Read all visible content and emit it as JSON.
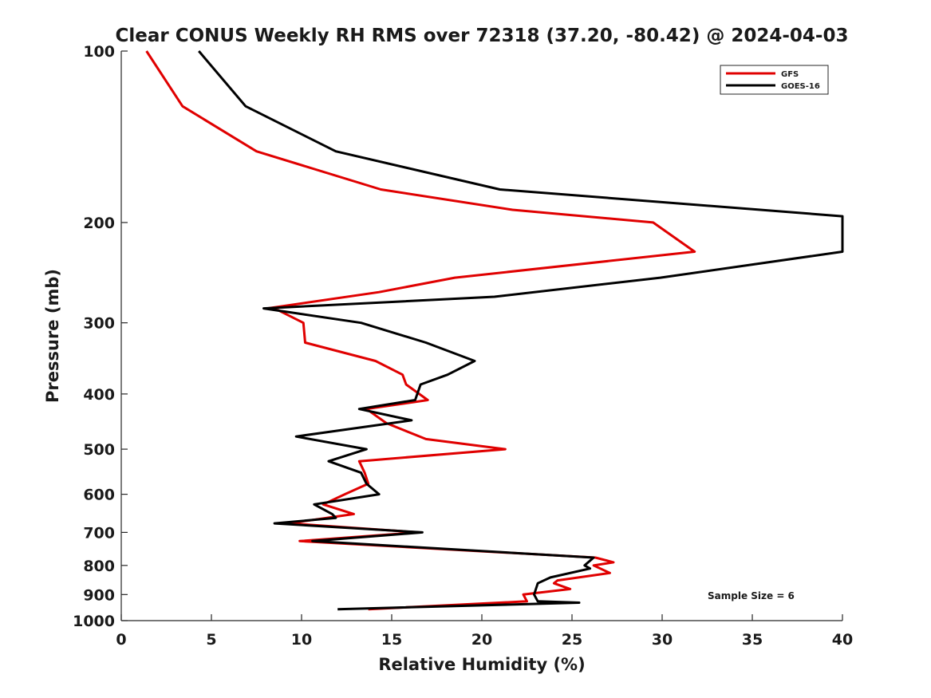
{
  "chart_data": {
    "type": "line",
    "title": "Clear CONUS Weekly RH RMS over 72318 (37.20, -80.42) @ 2024-04-03",
    "xlabel": "Relative Humidity (%)",
    "ylabel": "Pressure (mb)",
    "xlim": [
      0,
      40
    ],
    "ylim": [
      1000,
      100
    ],
    "y_scale": "log",
    "y_reversed": true,
    "x_ticks": [
      "0",
      "5",
      "10",
      "15",
      "20",
      "25",
      "30",
      "35",
      "40"
    ],
    "y_ticks": [
      "100",
      "200",
      "300",
      "400",
      "500",
      "600",
      "700",
      "800",
      "900",
      "1000"
    ],
    "grid": false,
    "legend_position": "top-right",
    "annotation": "Sample Size = 6",
    "series": [
      {
        "name": "GFS",
        "color": "#e00000",
        "points": [
          [
            1.4,
            100
          ],
          [
            3.4,
            125
          ],
          [
            7.5,
            150
          ],
          [
            14.4,
            175
          ],
          [
            21.7,
            190
          ],
          [
            29.5,
            200
          ],
          [
            31.8,
            225
          ],
          [
            18.5,
            250
          ],
          [
            14.3,
            265
          ],
          [
            8.1,
            283
          ],
          [
            8.7,
            285
          ],
          [
            10.1,
            300
          ],
          [
            10.2,
            325
          ],
          [
            14.1,
            350
          ],
          [
            15.6,
            370
          ],
          [
            15.8,
            385
          ],
          [
            17.0,
            410
          ],
          [
            13.6,
            425
          ],
          [
            14.7,
            450
          ],
          [
            16.9,
            480
          ],
          [
            21.3,
            500
          ],
          [
            13.2,
            525
          ],
          [
            13.5,
            550
          ],
          [
            13.7,
            575
          ],
          [
            12.4,
            600
          ],
          [
            11.2,
            625
          ],
          [
            12.9,
            650
          ],
          [
            9.3,
            675
          ],
          [
            16.5,
            700
          ],
          [
            9.9,
            725
          ],
          [
            26.3,
            775
          ],
          [
            27.3,
            790
          ],
          [
            26.2,
            800
          ],
          [
            27.1,
            825
          ],
          [
            24.2,
            850
          ],
          [
            24.0,
            860
          ],
          [
            24.9,
            880
          ],
          [
            22.3,
            900
          ],
          [
            22.5,
            925
          ],
          [
            13.7,
            955
          ]
        ]
      },
      {
        "name": "GOES-16",
        "color": "#000000",
        "points": [
          [
            4.3,
            100
          ],
          [
            6.9,
            125
          ],
          [
            11.9,
            150
          ],
          [
            21.0,
            175
          ],
          [
            40.0,
            195
          ],
          [
            40.0,
            225
          ],
          [
            29.9,
            250
          ],
          [
            20.7,
            270
          ],
          [
            7.9,
            283
          ],
          [
            13.3,
            300
          ],
          [
            16.9,
            325
          ],
          [
            19.6,
            350
          ],
          [
            18.1,
            370
          ],
          [
            16.6,
            385
          ],
          [
            16.3,
            410
          ],
          [
            13.2,
            425
          ],
          [
            16.1,
            445
          ],
          [
            9.7,
            475
          ],
          [
            13.6,
            500
          ],
          [
            11.5,
            525
          ],
          [
            13.3,
            550
          ],
          [
            13.6,
            575
          ],
          [
            14.3,
            600
          ],
          [
            10.7,
            625
          ],
          [
            11.7,
            650
          ],
          [
            11.9,
            660
          ],
          [
            8.5,
            675
          ],
          [
            16.7,
            700
          ],
          [
            10.6,
            725
          ],
          [
            26.2,
            775
          ],
          [
            25.7,
            800
          ],
          [
            26.0,
            810
          ],
          [
            23.8,
            840
          ],
          [
            23.1,
            860
          ],
          [
            22.9,
            900
          ],
          [
            23.1,
            925
          ],
          [
            25.4,
            930
          ],
          [
            12.0,
            955
          ]
        ]
      }
    ]
  }
}
